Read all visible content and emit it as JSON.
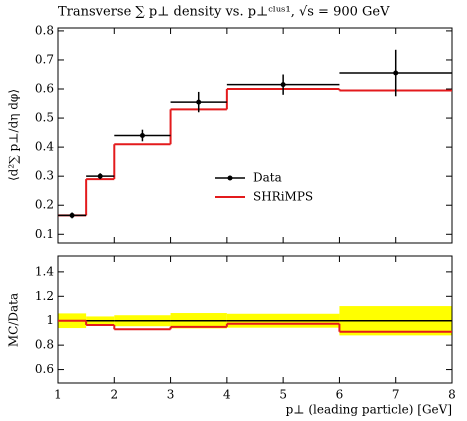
{
  "chart_data": {
    "type": "histogram_ratio",
    "title": "Transverse ∑ p⊥ density vs. p⊥ᶜˡᵘˢ¹, √s = 900 GeV",
    "y_label": "⟨d²∑ p⊥/dη dφ⟩",
    "x_label": "p⊥ (leading particle) [GeV]",
    "ratio_label": "MC/Data",
    "bins": [
      1,
      1.5,
      2,
      3,
      4,
      6,
      8
    ],
    "series": [
      {
        "name": "Data",
        "color": "#000000",
        "values": [
          0.165,
          0.3,
          0.44,
          0.555,
          0.615,
          0.655
        ],
        "errors": [
          0.01,
          0.01,
          0.02,
          0.035,
          0.035,
          0.08
        ]
      },
      {
        "name": "SHRiMPS",
        "color": "#e31a1c",
        "values": [
          0.165,
          0.29,
          0.41,
          0.53,
          0.6,
          0.595
        ]
      }
    ],
    "xlim": [
      1,
      8
    ],
    "xticks": [
      1,
      2,
      3,
      4,
      5,
      6,
      7,
      8
    ],
    "ylim": [
      0.07,
      0.81
    ],
    "yticks": [
      0.1,
      0.2,
      0.3,
      0.4,
      0.5,
      0.6,
      0.7,
      0.8
    ],
    "ratio": {
      "ylim": [
        0.49,
        1.53
      ],
      "yticks": [
        0.6,
        0.8,
        1,
        1.2,
        1.4
      ],
      "data_values": [
        1,
        1,
        1,
        1,
        1,
        1
      ],
      "band": [
        0.06,
        0.035,
        0.045,
        0.063,
        0.057,
        0.12
      ],
      "band_color": "#ffff00",
      "mc_values": [
        1.0,
        0.965,
        0.93,
        0.95,
        0.975,
        0.91
      ]
    }
  }
}
